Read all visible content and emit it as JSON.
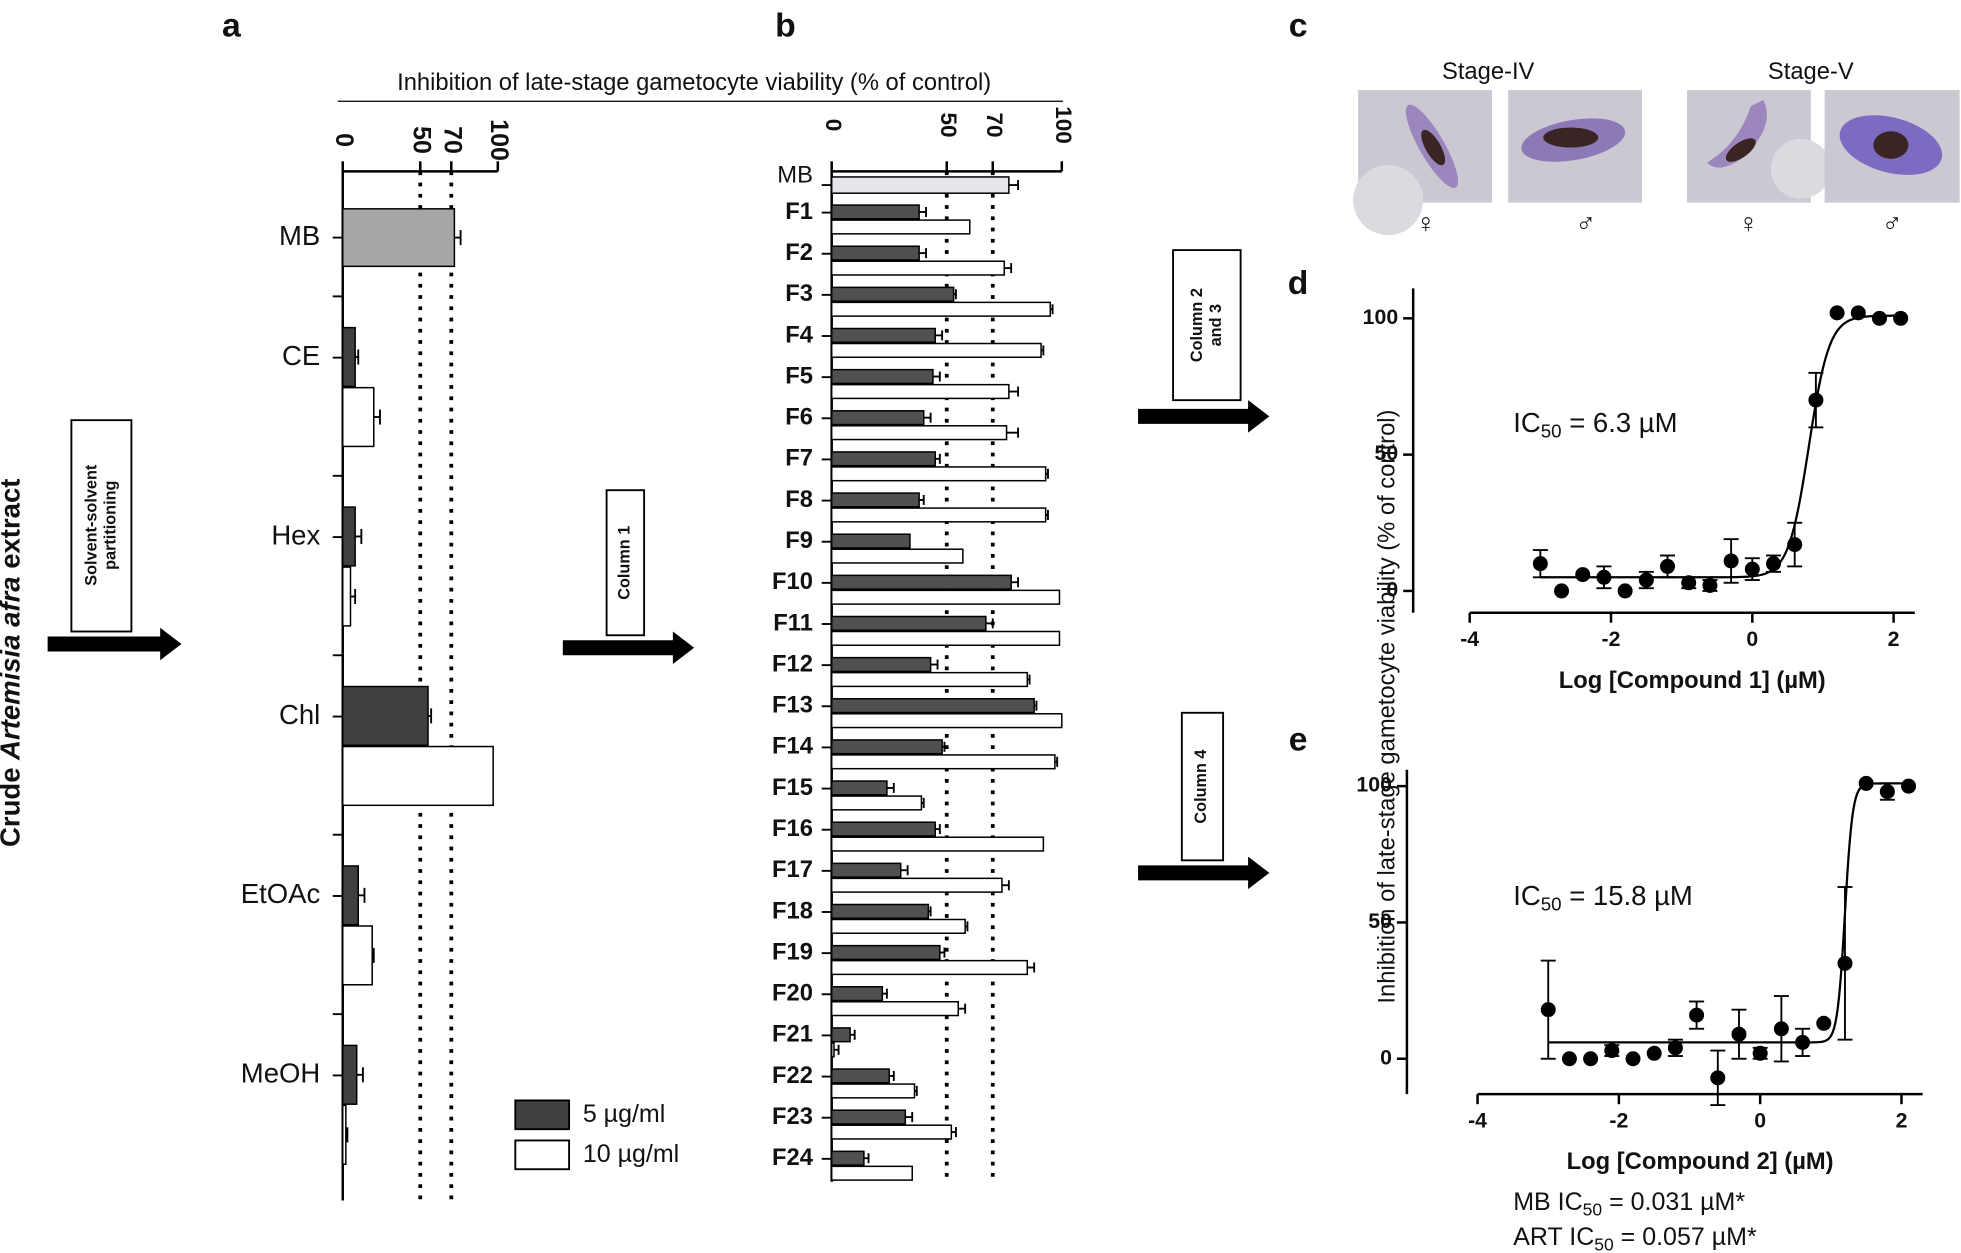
{
  "figure": {
    "panel_labels": [
      "a",
      "b",
      "c",
      "d",
      "e"
    ],
    "side_label": [
      "Crude ",
      "Artemisia afra",
      " extract"
    ],
    "steps": [
      [
        "Solvent-solvent",
        "partitioning"
      ],
      [
        "Column 1"
      ],
      [
        "Column 2",
        "and 3"
      ],
      [
        "Column 4"
      ]
    ],
    "y_label": "Inhibition of late-stage gametocyte viability (% of control)",
    "notes": [
      [
        "MB IC",
        "50",
        "  = 0.031 µM*"
      ],
      [
        "ART IC",
        "50",
        " = 0.057 µM*"
      ]
    ]
  },
  "micrographs": {
    "stages": [
      "Stage-IV",
      "Stage-V"
    ],
    "sexes": [
      "♀",
      "♂",
      "♀",
      "♂"
    ]
  },
  "chart_data": [
    {
      "type": "hbar",
      "xlabel": "Inhibition of late-stage gametocyte viability (% of control)",
      "categories": [
        "CE",
        "Hex",
        "Chl",
        "EtOAc",
        "MeOH"
      ],
      "reference": {
        "name": "MB",
        "value": 72,
        "error": 4,
        "color": "#a6a6a6"
      },
      "series": [
        {
          "name": "5 µg/ml",
          "color": "#404040",
          "values": [
            8,
            8,
            55,
            10,
            9
          ],
          "errors": [
            2,
            4,
            2,
            4,
            4
          ]
        },
        {
          "name": "10 µg/ml",
          "color": "#ffffff",
          "values": [
            20,
            5,
            97,
            19,
            2
          ],
          "errors": [
            4,
            3,
            null,
            1,
            1
          ]
        }
      ],
      "xlim": [
        0,
        100
      ],
      "xticks": [
        0,
        50,
        70,
        100
      ],
      "reference_lines": [
        50,
        70
      ]
    },
    {
      "type": "hbar",
      "categories": [
        "F1",
        "F2",
        "F3",
        "F4",
        "F5",
        "F6",
        "F7",
        "F8",
        "F9",
        "F10",
        "F11",
        "F12",
        "F13",
        "F14",
        "F15",
        "F16",
        "F17",
        "F18",
        "F19",
        "F20",
        "F21",
        "F22",
        "F23",
        "F24"
      ],
      "reference": {
        "name": "MB",
        "value": 77,
        "error": 4,
        "color": "#e4e4ea"
      },
      "series": [
        {
          "color": "#505050",
          "values": [
            38,
            38,
            53,
            45,
            44,
            40,
            45,
            38,
            34,
            78,
            67,
            43,
            88,
            48,
            24,
            45,
            30,
            42,
            47,
            22,
            8,
            25,
            32,
            14
          ],
          "errors": [
            3,
            3,
            1,
            3,
            3,
            3,
            2,
            2,
            null,
            3,
            3,
            3,
            1,
            1,
            3,
            2,
            3,
            1,
            2,
            2,
            2,
            2,
            3,
            2
          ]
        },
        {
          "color": "#ffffff",
          "values": [
            60,
            75,
            95,
            91,
            77,
            76,
            93,
            93,
            57,
            99,
            99,
            85,
            100,
            97,
            39,
            92,
            74,
            58,
            85,
            55,
            1,
            36,
            52,
            35
          ],
          "errors": [
            null,
            3,
            1,
            1,
            4,
            5,
            1,
            1,
            null,
            null,
            null,
            1,
            null,
            1,
            1,
            null,
            3,
            1,
            3,
            3,
            2,
            1,
            2,
            null
          ]
        }
      ],
      "xlim": [
        0,
        100
      ],
      "xticks": [
        0,
        50,
        70,
        100
      ],
      "reference_lines": [
        50,
        70
      ]
    },
    {
      "type": "scatter",
      "annotation": [
        "IC",
        "50",
        " = 6.3 µM"
      ],
      "xlabel": "Log [Compound 1] (µM)",
      "x": [
        -3.0,
        -2.7,
        -2.4,
        -2.1,
        -1.8,
        -1.5,
        -1.2,
        -0.9,
        -0.6,
        -0.3,
        0,
        0.3,
        0.6,
        0.9,
        1.2,
        1.5,
        1.8,
        2.1
      ],
      "series": [
        {
          "color": "#000000",
          "values": [
            10,
            0,
            6,
            5,
            0,
            4,
            9,
            3,
            2,
            11,
            8,
            10,
            17,
            70,
            102,
            102,
            100,
            100
          ],
          "errors": [
            5,
            null,
            null,
            4,
            null,
            3,
            4,
            2,
            2,
            8,
            4,
            3,
            8,
            10,
            null,
            null,
            null,
            null
          ]
        }
      ],
      "fit": {
        "bottom": 5,
        "top": 101,
        "log_ic50": 0.8,
        "hill": 3
      },
      "xlim": [
        -4.8,
        2.3
      ],
      "xticks": [
        -4,
        -2,
        0,
        2
      ],
      "ylim": [
        -8,
        111
      ],
      "yticks": [
        0,
        50,
        100
      ]
    },
    {
      "type": "scatter",
      "annotation": [
        "IC",
        "50",
        " = 15.8 µM"
      ],
      "xlabel": "Log [Compound 2] (µM)",
      "x": [
        -3.0,
        -2.7,
        -2.4,
        -2.1,
        -1.8,
        -1.5,
        -1.2,
        -0.9,
        -0.6,
        -0.3,
        0,
        0.3,
        0.6,
        0.9,
        1.2,
        1.5,
        1.8,
        2.1
      ],
      "series": [
        {
          "color": "#000000",
          "values": [
            18,
            0,
            0,
            3,
            0,
            2,
            4,
            16,
            -7,
            9,
            2,
            11,
            6,
            13,
            35,
            101,
            98,
            100
          ],
          "errors": [
            18,
            null,
            null,
            2,
            null,
            null,
            3,
            5,
            10,
            9,
            2,
            12,
            5,
            null,
            28,
            null,
            3,
            null
          ]
        }
      ],
      "fit": {
        "bottom": 6,
        "top": 101,
        "log_ic50": 1.2,
        "hill": 8
      },
      "xlim": [
        -5,
        2.3
      ],
      "xticks": [
        -4,
        -2,
        0,
        2
      ],
      "ylim": [
        -13,
        106
      ],
      "yticks": [
        0,
        50,
        100
      ]
    }
  ]
}
